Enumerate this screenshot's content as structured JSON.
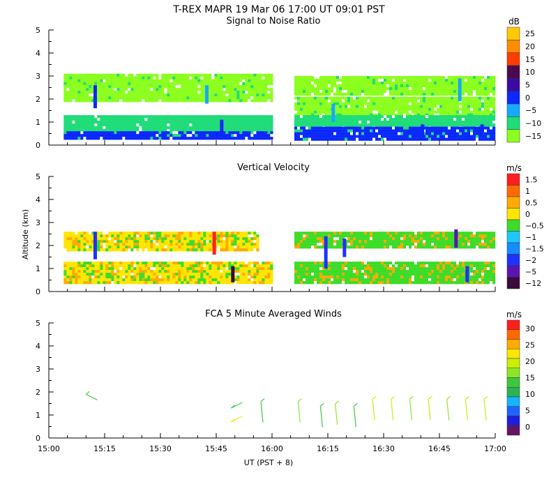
{
  "header": {
    "title": "T-REX   MAPR 19 Mar 06   17:00 UT   09:01   PST"
  },
  "x_axis": {
    "label": "UT  (PST + 8)",
    "tick_labels": [
      "15:00",
      "15:15",
      "15:30",
      "15:45",
      "16:00",
      "16:15",
      "16:30",
      "16:45",
      "17:00"
    ],
    "range_minutes": [
      0,
      120
    ]
  },
  "y_axis": {
    "label": "Altitude (km)",
    "tick_labels": [
      "0",
      "1",
      "2",
      "3",
      "4",
      "5"
    ],
    "range_km": [
      0,
      5
    ]
  },
  "chart_data": [
    {
      "type": "heatmap",
      "title": "Signal to Noise Ratio",
      "unit": "dB",
      "xlabel": "",
      "ylabel": "",
      "xlim": [
        "15:00",
        "17:00"
      ],
      "ylim": [
        0,
        5
      ],
      "colorbar": {
        "labels": [
          "25",
          "20",
          "15",
          "10",
          "5",
          "0",
          "−5",
          "−10",
          "−15"
        ],
        "colors": [
          "#ffc800",
          "#ff8c00",
          "#ff3c00",
          "#4b0a50",
          "#3c0aa0",
          "#0a28ff",
          "#14aaff",
          "#1edc78",
          "#8cff1e"
        ]
      },
      "bands": [
        {
          "x": [
            "15:04",
            "16:00"
          ],
          "y_km": [
            2.6,
            3.1
          ],
          "level": "−15"
        },
        {
          "x": [
            "15:04",
            "16:00"
          ],
          "y_km": [
            1.9,
            2.6
          ],
          "level": "−15"
        },
        {
          "x": [
            "15:04",
            "16:00"
          ],
          "y_km": [
            0.5,
            1.3
          ],
          "level": "−10"
        },
        {
          "x": [
            "15:04",
            "16:00"
          ],
          "y_km": [
            0.3,
            0.6
          ],
          "level": "0"
        },
        {
          "x": [
            "16:06",
            "17:00"
          ],
          "y_km": [
            2.2,
            3.0
          ],
          "level": "−15"
        },
        {
          "x": [
            "16:06",
            "17:00"
          ],
          "y_km": [
            1.3,
            2.1
          ],
          "level": "−15"
        },
        {
          "x": [
            "16:06",
            "17:00"
          ],
          "y_km": [
            0.7,
            1.3
          ],
          "level": "−10"
        },
        {
          "x": [
            "16:06",
            "17:00"
          ],
          "y_km": [
            0.3,
            0.8
          ],
          "level": "0"
        }
      ]
    },
    {
      "type": "heatmap",
      "title": "Vertical Velocity",
      "unit": "m/s",
      "xlabel": "",
      "ylabel": "Altitude (km)",
      "xlim": [
        "15:00",
        "17:00"
      ],
      "ylim": [
        0,
        5
      ],
      "colorbar": {
        "labels": [
          "1.5",
          "1",
          "0.5",
          "0",
          "−0.5",
          "−1",
          "−1.5",
          "−2",
          "−5",
          "−12"
        ],
        "colors": [
          "#ff1e1e",
          "#ff6a00",
          "#ffaa00",
          "#ffe600",
          "#3cdc28",
          "#1ec8ff",
          "#148cff",
          "#1e32ff",
          "#5a14b4",
          "#3c0a3c"
        ]
      },
      "bands": [
        {
          "x": [
            "15:04",
            "15:56"
          ],
          "y_km": [
            1.8,
            2.6
          ],
          "level": "0"
        },
        {
          "x": [
            "15:04",
            "16:00"
          ],
          "y_km": [
            0.4,
            1.3
          ],
          "level": "0"
        },
        {
          "x": [
            "16:06",
            "17:00"
          ],
          "y_km": [
            1.9,
            2.6
          ],
          "level": "−0.5"
        },
        {
          "x": [
            "16:06",
            "17:00"
          ],
          "y_km": [
            0.4,
            1.3
          ],
          "level": "−0.5"
        }
      ]
    },
    {
      "type": "scatter",
      "title": "FCA 5 Minute Averaged Winds",
      "unit": "m/s",
      "xlabel": "UT  (PST + 8)",
      "ylabel": "",
      "xlim": [
        "15:00",
        "17:00"
      ],
      "ylim": [
        0,
        5
      ],
      "colorbar": {
        "labels": [
          "30",
          "25",
          "20",
          "15",
          "10",
          "5",
          "0"
        ],
        "colors": [
          "#ff1e1e",
          "#ff6a00",
          "#ffaa00",
          "#ffe600",
          "#c8f000",
          "#8ce628",
          "#3cc83c",
          "#28b450",
          "#14b4ff",
          "#1e64ff",
          "#1e1edc",
          "#641464"
        ]
      },
      "barbs": [
        {
          "time": "15:10",
          "alt_km": 1.9,
          "speed": 12
        },
        {
          "time": "15:49",
          "alt_km": 1.3,
          "speed": 14
        },
        {
          "time": "15:49",
          "alt_km": 0.7,
          "speed": 20
        },
        {
          "time": "15:57",
          "alt_km": 1.1,
          "speed": 14
        },
        {
          "time": "16:07",
          "alt_km": 1.1,
          "speed": 15
        },
        {
          "time": "16:13",
          "alt_km": 0.9,
          "speed": 14
        },
        {
          "time": "16:17",
          "alt_km": 1.0,
          "speed": 16
        },
        {
          "time": "16:22",
          "alt_km": 0.9,
          "speed": 12
        },
        {
          "time": "16:27",
          "alt_km": 1.2,
          "speed": 18
        },
        {
          "time": "16:32",
          "alt_km": 1.2,
          "speed": 19
        },
        {
          "time": "16:37",
          "alt_km": 1.2,
          "speed": 16
        },
        {
          "time": "16:42",
          "alt_km": 1.2,
          "speed": 17
        },
        {
          "time": "16:47",
          "alt_km": 1.2,
          "speed": 16
        },
        {
          "time": "16:52",
          "alt_km": 1.2,
          "speed": 17
        },
        {
          "time": "16:57",
          "alt_km": 1.2,
          "speed": 18
        }
      ]
    }
  ]
}
